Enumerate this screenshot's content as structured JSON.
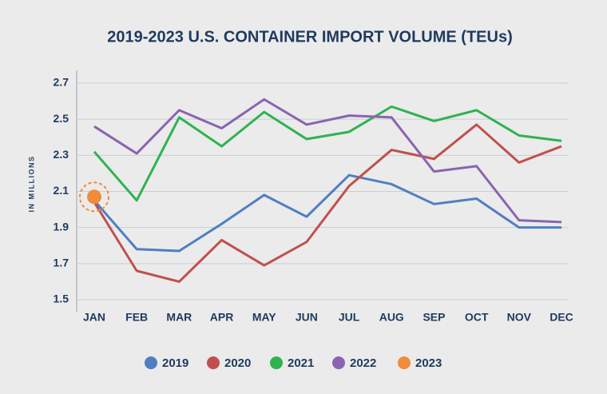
{
  "chart_data": {
    "type": "line",
    "title": "2019-2023 U.S. CONTAINER IMPORT VOLUME (TEUs)",
    "y_label": "IN MILLIONS",
    "categories": [
      "JAN",
      "FEB",
      "MAR",
      "APR",
      "MAY",
      "JUN",
      "JUL",
      "AUG",
      "SEP",
      "OCT",
      "NOV",
      "DEC"
    ],
    "ylim": [
      1.5,
      2.7
    ],
    "yticks": [
      1.5,
      1.7,
      1.9,
      2.1,
      2.3,
      2.5,
      2.7
    ],
    "grid": true,
    "legend": "bottom",
    "series": [
      {
        "name": "2019",
        "color": "#4f7fc0",
        "values": [
          2.05,
          1.78,
          1.77,
          1.92,
          2.08,
          1.96,
          2.19,
          2.14,
          2.03,
          2.06,
          1.9,
          1.9
        ]
      },
      {
        "name": "2020",
        "color": "#c0504d",
        "values": [
          2.04,
          1.66,
          1.6,
          1.83,
          1.69,
          1.82,
          2.13,
          2.33,
          2.28,
          2.47,
          2.26,
          2.35
        ]
      },
      {
        "name": "2021",
        "color": "#2eb350",
        "values": [
          2.32,
          2.05,
          2.51,
          2.35,
          2.54,
          2.39,
          2.43,
          2.57,
          2.49,
          2.55,
          2.41,
          2.38
        ]
      },
      {
        "name": "2022",
        "color": "#8a64b0",
        "values": [
          2.46,
          2.31,
          2.55,
          2.45,
          2.61,
          2.47,
          2.52,
          2.51,
          2.21,
          2.24,
          1.94,
          1.93
        ]
      },
      {
        "name": "2023",
        "color": "#f08c3a",
        "values": [
          2.07,
          null,
          null,
          null,
          null,
          null,
          null,
          null,
          null,
          null,
          null,
          null
        ]
      }
    ]
  }
}
